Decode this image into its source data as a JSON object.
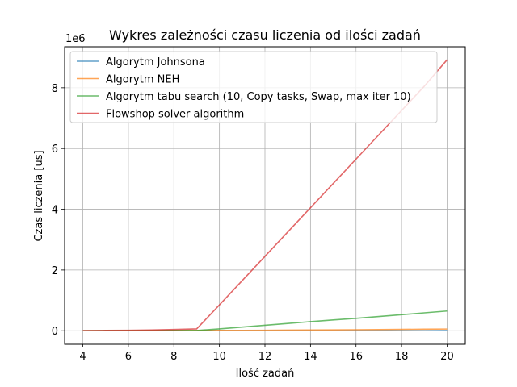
{
  "chart_data": {
    "type": "line",
    "title": "Wykres zależności czasu liczenia od ilości zadań",
    "xlabel": "Ilość zadań",
    "ylabel": "Czas liczenia [us]",
    "y_multiplier_label": "1e6",
    "xlim": [
      3.2,
      20.8
    ],
    "ylim": [
      -0.445,
      9.35
    ],
    "y_units": "millions of us (×1e6)",
    "x_ticks": [
      4,
      6,
      8,
      10,
      12,
      14,
      16,
      18,
      20
    ],
    "y_ticks": [
      0,
      2,
      4,
      6,
      8
    ],
    "grid": true,
    "legend_position": "top-left",
    "x": [
      4,
      5,
      6,
      7,
      8,
      9,
      10,
      11,
      12,
      13,
      14,
      15,
      16,
      17,
      18,
      19,
      20
    ],
    "series": [
      {
        "name": "Algorytm Johnsona",
        "color": "#1f77b4",
        "values": [
          0,
          0,
          0,
          0,
          0,
          0,
          0,
          0,
          0,
          0,
          0,
          0,
          0,
          0,
          0,
          0,
          0.005
        ]
      },
      {
        "name": "Algorytm NEH",
        "color": "#ff7f0e",
        "values": [
          0,
          0,
          0.002,
          0.004,
          0.006,
          0.008,
          0.01,
          0.013,
          0.016,
          0.02,
          0.024,
          0.028,
          0.033,
          0.038,
          0.044,
          0.05,
          0.056
        ]
      },
      {
        "name": "Algorytm tabu search (10, Copy tasks, Swap, max iter 10)",
        "color": "#2ca02c",
        "values": [
          0.003,
          0.004,
          0.005,
          0.006,
          0.007,
          0.009,
          0.06,
          0.12,
          0.18,
          0.24,
          0.3,
          0.355,
          0.41,
          0.47,
          0.53,
          0.59,
          0.65
        ]
      },
      {
        "name": "Flowshop solver algorithm",
        "color": "#d62728",
        "values": [
          0.005,
          0.01,
          0.015,
          0.025,
          0.04,
          0.06,
          0.85,
          1.65,
          2.45,
          3.25,
          4.05,
          4.85,
          5.65,
          6.45,
          7.25,
          8.05,
          8.92
        ]
      }
    ]
  }
}
